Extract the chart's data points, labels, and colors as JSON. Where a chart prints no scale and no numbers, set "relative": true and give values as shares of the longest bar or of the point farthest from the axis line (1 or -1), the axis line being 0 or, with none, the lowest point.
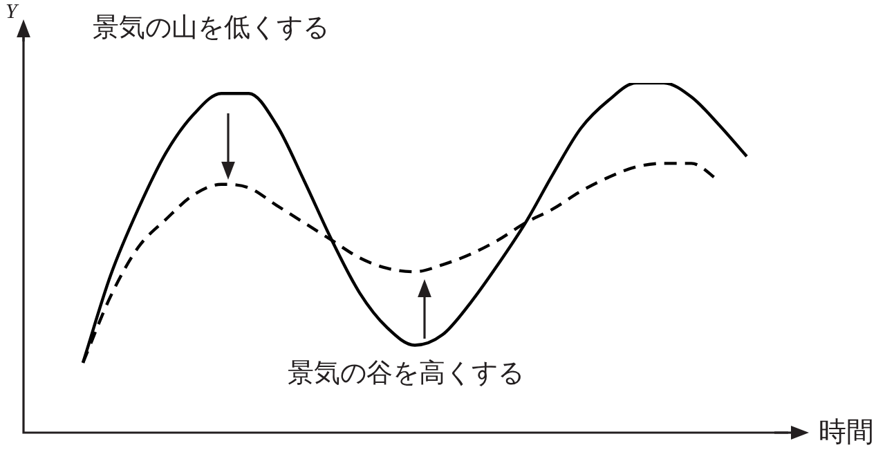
{
  "chart_data": {
    "type": "line",
    "relative": true,
    "xlabel": "時間",
    "ylabel": "Y",
    "legend": false,
    "marker": "none",
    "annotations": [
      "景気の山を低くする",
      "景気の谷を高くする"
    ],
    "categories": [
      null,
      null,
      null,
      null,
      null,
      null,
      null,
      null,
      null,
      null,
      null,
      null,
      null,
      null,
      null,
      null,
      null,
      null,
      null,
      null,
      null,
      null,
      null,
      null,
      null
    ],
    "series": [
      {
        "color": "#000000",
        "line_style": "solid",
        "values": [
          0.2,
          0.45,
          0.64,
          0.8,
          0.91,
          0.97,
          0.97,
          0.88,
          0.72,
          0.55,
          0.4,
          0.3,
          0.25,
          0.28,
          0.37,
          0.48,
          0.6,
          0.74,
          0.87,
          0.95,
          1,
          1,
          0.96,
          0.88,
          0.79
        ]
      },
      {
        "color": "#000000",
        "line_style": "dashed",
        "values": [
          0.2,
          0.39,
          0.53,
          0.61,
          0.68,
          0.71,
          0.7,
          0.65,
          0.6,
          0.55,
          0.5,
          0.47,
          0.46,
          0.48,
          0.51,
          0.55,
          0.6,
          0.64,
          0.69,
          0.73,
          0.76,
          0.77,
          0.77,
          0.72,
          null
        ]
      }
    ]
  }
}
